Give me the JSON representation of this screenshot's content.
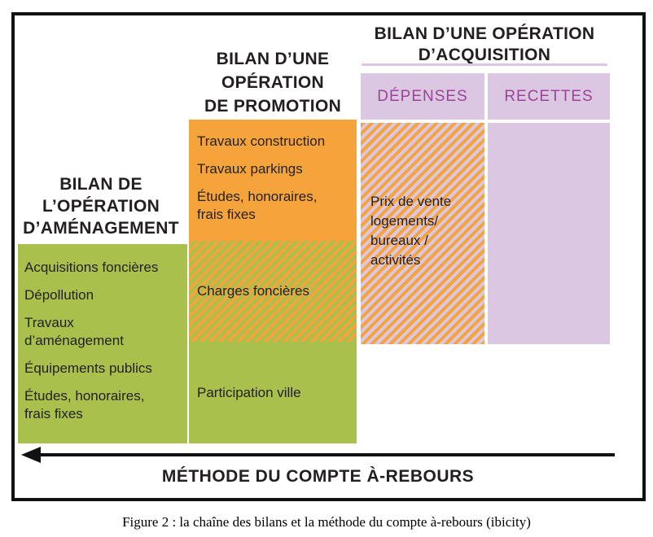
{
  "colors": {
    "green": "#A9C04C",
    "orange": "#F5A43C",
    "lavender": "#DBC7E1",
    "purple_text": "#9C4398",
    "text_dark": "#231F20"
  },
  "columns": {
    "amenagement": {
      "title": "BILAN DE\nL’OPÉRATION\nD’AMÉNAGEMENT",
      "items": [
        "Acquisitions foncières",
        "Dépollution",
        "Travaux\nd’aménagement",
        "Équipements publics",
        "Études, honoraires,\nfrais fixes"
      ]
    },
    "promotion": {
      "title": "BILAN D’UNE\nOPÉRATION\nDE PROMOTION",
      "items": [
        "Travaux construction",
        "Travaux parkings",
        "Études, honoraires,\nfrais fixes"
      ],
      "charges_label": "Charges foncières",
      "participation_label": "Participation ville"
    },
    "acquisition": {
      "title": "BILAN D’UNE OPÉRATION\nD’ACQUISITION",
      "depenses_header": "DÉPENSES",
      "recettes_header": "RECETTES",
      "depenses_body": "Prix de vente\nlogements/\nbureaux /\nactivités"
    }
  },
  "footer": {
    "arrow_label": "MÉTHODE DU COMPTE À-REBOURS"
  },
  "caption": "Figure 2 : la chaîne des bilans et la méthode du compte à-rebours (ibicity)"
}
